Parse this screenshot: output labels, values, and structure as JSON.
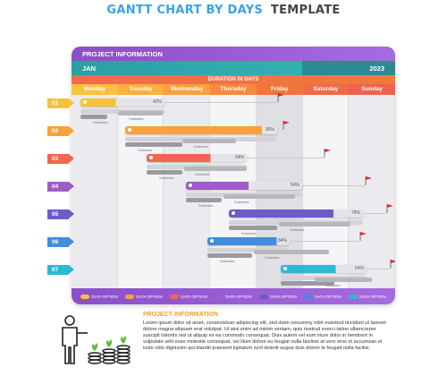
{
  "header": {
    "title_main": "GANTT CHART BY DAYS",
    "title_suffix": "TEMPLATE"
  },
  "board": {
    "project_label": "PROJECT INFORMATION",
    "month": "JAN",
    "year": "2023",
    "duration_label": "DURATION IN DAYS",
    "days": [
      {
        "label": "Monday",
        "color": "#f8c23c"
      },
      {
        "label": "Tuesday",
        "color": "#f9b13a"
      },
      {
        "label": "Wednesday",
        "color": "#f8a13c"
      },
      {
        "label": "Thursday",
        "color": "#f78a3c"
      },
      {
        "label": "Friday",
        "color": "#f4733d"
      },
      {
        "label": "Saturday",
        "color": "#f26a48"
      },
      {
        "label": "Sunday",
        "color": "#f06150"
      }
    ]
  },
  "tasks": [
    {
      "num": "01",
      "color": "#f6c23a",
      "pct_label": "42%",
      "percent": 42,
      "sub1": "Subtasks",
      "sub2": "Subtasks"
    },
    {
      "num": "02",
      "color": "#f7a23a",
      "pct_label": "90%",
      "percent": 90,
      "sub1": "Subtasks",
      "sub2": "Subtasks"
    },
    {
      "num": "03",
      "color": "#f2664b",
      "pct_label": "64%",
      "percent": 64,
      "sub1": "Subtasks",
      "sub2": "Subtasks"
    },
    {
      "num": "04",
      "color": "#a05bc6",
      "pct_label": "54%",
      "percent": 54,
      "sub1": "Subtasks",
      "sub2": "Subtasks"
    },
    {
      "num": "05",
      "color": "#6b5cc8",
      "pct_label": "78%",
      "percent": 78,
      "sub1": "Subtasks",
      "sub2": "Subtasks"
    },
    {
      "num": "06",
      "color": "#3f8fdc",
      "pct_label": "84%",
      "percent": 84,
      "sub1": "Subtasks",
      "sub2": "Subtasks"
    },
    {
      "num": "07",
      "color": "#2fb8d4",
      "pct_label": "64%",
      "percent": 64,
      "sub1": "Subtasks",
      "sub2": "Subtasks"
    }
  ],
  "legend": [
    {
      "label": "DATA OPTION",
      "color": "#f6c23a"
    },
    {
      "label": "DATA OPTION",
      "color": "#f7a23a"
    },
    {
      "label": "DATA OPTION",
      "color": "#f2664b"
    },
    {
      "label": "DATA OPTION",
      "color": "#a05bc6"
    },
    {
      "label": "DATA OPTION",
      "color": "#6b5cc8"
    },
    {
      "label": "DATA OPTION",
      "color": "#3f8fdc"
    },
    {
      "label": "DATA OPTION",
      "color": "#2fb8d4"
    }
  ],
  "info": {
    "title": "PROJECT INFORMATION",
    "text": "Lorem ipsum dolor sit amet, consectetuer adipiscing elit, sed diam nonummy nibh euismod tincidunt ut laoreet dolore magna aliquam erat volutpat. Ut wisi enim ad minim veniam, quis nostrud exerci tation ullamcorper suscipit lobortis nisl ut aliquip ex ea commodo consequat. Duis autem vel eum iriure dolor in hendrerit in vulputate velit esse molestie consequat, vel illum dolore eu feugiat nulla facilisis at vero eros et accumsan et iusto odio dignissim qui blandit praesent luptatum zzril delenit augue duis dolore te feugait nulla facilisi."
  }
}
